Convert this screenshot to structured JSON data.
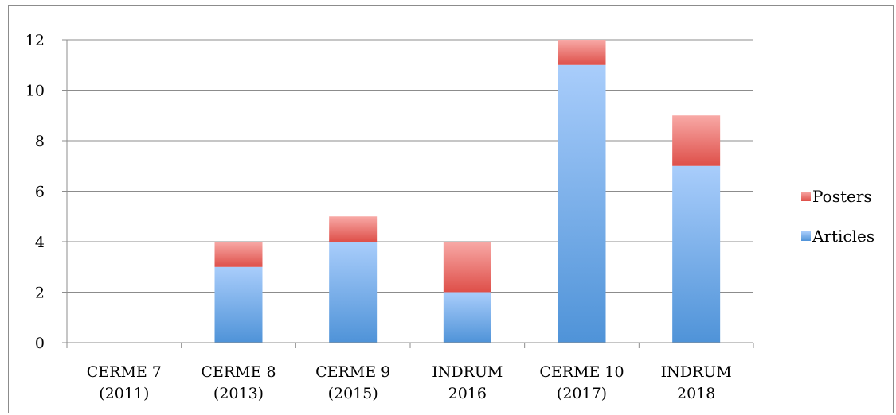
{
  "chart_data": {
    "type": "bar",
    "stacked": true,
    "categories": [
      [
        "CERME 7",
        "(2011)"
      ],
      [
        "CERME 8",
        "(2013)"
      ],
      [
        "CERME 9",
        "(2015)"
      ],
      [
        "INDRUM",
        "2016"
      ],
      [
        "CERME 10",
        "(2017)"
      ],
      [
        "INDRUM",
        "2018"
      ]
    ],
    "series": [
      {
        "name": "Articles",
        "values": [
          0,
          3,
          4,
          2,
          11,
          7
        ],
        "color_top": "#a9cdfb",
        "color_bottom": "#4f93d8"
      },
      {
        "name": "Posters",
        "values": [
          0,
          1,
          1,
          2,
          1,
          2
        ],
        "color_top": "#f8a9a6",
        "color_bottom": "#de4f49"
      }
    ],
    "ylim": [
      0,
      12
    ],
    "yticks": [
      0,
      2,
      4,
      6,
      8,
      10,
      12
    ],
    "grid": true,
    "legend_position": "right",
    "legend_order": [
      "Posters",
      "Articles"
    ],
    "title": "",
    "xlabel": "",
    "ylabel": ""
  }
}
